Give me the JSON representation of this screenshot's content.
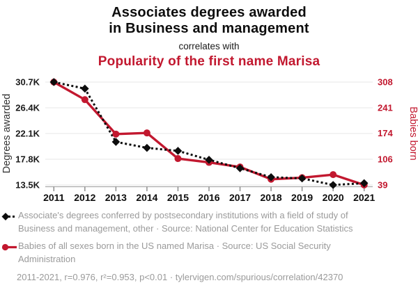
{
  "header": {
    "title_line1": "Associates degrees awarded",
    "title_line2": "in Business and management",
    "connector": "correlates with",
    "subtitle": "Popularity of the first name Marisa"
  },
  "colors": {
    "accent_red": "#c2182f",
    "series_black": "#0d0d0d",
    "legend_gray": "#9a9a9a",
    "grid": "#e7e7e7",
    "axis_line": "#aaaaaa",
    "tick_mark": "#888888",
    "left_axis_text": "#1a1a1a"
  },
  "chart_data": {
    "type": "line",
    "x": [
      2011,
      2012,
      2013,
      2014,
      2015,
      2016,
      2017,
      2018,
      2019,
      2020,
      2021
    ],
    "series": [
      {
        "name": "Associates degrees awarded in Business and management",
        "axis": "left",
        "style": "dashed",
        "marker": "diamond",
        "values": [
          30700,
          29600,
          20700,
          19700,
          19200,
          17700,
          16300,
          14800,
          14600,
          13500,
          13800
        ]
      },
      {
        "name": "Popularity of the first name Marisa",
        "axis": "right",
        "style": "solid",
        "marker": "circle",
        "values": [
          308,
          262,
          172,
          175,
          108,
          98,
          86,
          54,
          58,
          66,
          39
        ]
      }
    ],
    "left_axis": {
      "label": "Degrees awarded",
      "range": [
        13500,
        30700
      ],
      "ticks": [
        30700,
        26400,
        22100,
        17800,
        13500
      ],
      "tick_labels": [
        "30.7K",
        "26.4K",
        "22.1K",
        "17.8K",
        "13.5K"
      ]
    },
    "right_axis": {
      "label": "Babies born",
      "range": [
        39,
        308
      ],
      "ticks": [
        308,
        241,
        174,
        106,
        39
      ],
      "tick_labels": [
        "308",
        "241",
        "174",
        "106",
        "39"
      ]
    },
    "grid": true,
    "legend_position": "bottom"
  },
  "legend": {
    "entries": [
      {
        "marker": "black-diamond-dashed-line",
        "label": "Associate's degrees conferred by postsecondary institutions with a field of study of Business and management, other · Source: National Center for Education Statistics"
      },
      {
        "marker": "red-circle-solid-line",
        "label": "Babies of all sexes born in the US named Marisa · Source: US Social Security Administration"
      }
    ]
  },
  "footer": {
    "text": "2011-2021, r=0.976, r²=0.953, p<0.01 · tylervigen.com/spurious/correlation/42370"
  }
}
